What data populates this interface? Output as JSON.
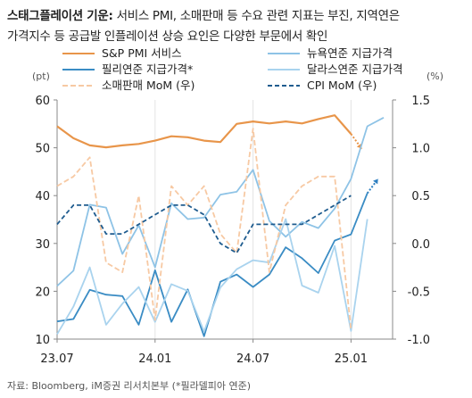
{
  "title": {
    "bold": "스태그플레이션 기운:",
    "line1_rest": " 서비스 PMI, 소매판매 등 수요 관련 지표는 부진, 지역연은",
    "line2": "가격지수 등 공급발 인플레이션 상승 요인은 다양한 부문에서 확인"
  },
  "source_note": "자료: Bloomberg, iM증권 리서치본부 (*필라델피아 연준)",
  "colors": {
    "sp_pmi": "#E8954A",
    "ny_fed": "#8EC3E6",
    "philly_fed": "#3A8CC4",
    "dallas_fed": "#A9D3EE",
    "retail_mom": "#F7C9A3",
    "cpi_mom": "#1F5C8F",
    "arrow_orange": "#E8954A",
    "arrow_blue": "#2E7FC0"
  },
  "chart_data": {
    "type": "line",
    "x": [
      "23.07",
      "23.08",
      "23.09",
      "23.10",
      "23.11",
      "23.12",
      "24.01",
      "24.02",
      "24.03",
      "24.04",
      "24.05",
      "24.06",
      "24.07",
      "24.08",
      "24.09",
      "24.10",
      "24.11",
      "24.12",
      "25.01",
      "25.02",
      "25.03"
    ],
    "x_tick_labels": [
      "23.07",
      "24.01",
      "24.07",
      "25.01"
    ],
    "left_axis": {
      "unit": "(pt)",
      "ylim": [
        10,
        60
      ],
      "ticks": [
        10,
        20,
        30,
        40,
        50,
        60
      ]
    },
    "right_axis": {
      "unit": "(%)",
      "ylim": [
        -1.0,
        1.5
      ],
      "ticks": [
        "-1.0",
        "-0.5",
        "0.0",
        "0.5",
        "1.0",
        "1.5"
      ]
    },
    "series": [
      {
        "name": "S&P PMI 서비스",
        "axis": "left",
        "style": "solid",
        "key": "sp_pmi",
        "values": [
          54.5,
          52.0,
          50.5,
          50.1,
          50.5,
          50.8,
          51.5,
          52.4,
          52.2,
          51.5,
          51.2,
          55.0,
          55.5,
          55.1,
          55.5,
          55.1,
          56.0,
          56.8,
          52.9,
          null,
          null
        ],
        "end_arrow": {
          "from": [
            52.9
          ],
          "to": 49.8
        }
      },
      {
        "name": "뉴욕연준 지급가격",
        "axis": "left",
        "style": "solid",
        "key": "ny_fed",
        "values": [
          21.1,
          24.3,
          38.1,
          37.5,
          27.8,
          33.8,
          25.0,
          38.4,
          35.1,
          35.4,
          40.2,
          40.8,
          45.4,
          34.7,
          31.4,
          34.5,
          33.2,
          37.3,
          43.5,
          54.5,
          56.3
        ]
      },
      {
        "name": "필리연준 지급가격*",
        "axis": "left",
        "style": "solid",
        "key": "philly_fed",
        "values": [
          13.7,
          14.2,
          20.3,
          19.3,
          19.0,
          13.0,
          24.4,
          13.6,
          20.4,
          10.6,
          22.0,
          23.5,
          20.9,
          23.5,
          29.2,
          26.9,
          23.8,
          30.6,
          31.9,
          40.5,
          null
        ],
        "end_arrow": {
          "to": 43.5
        }
      },
      {
        "name": "달라스연준 지급가격",
        "axis": "left",
        "style": "solid",
        "key": "dallas_fed",
        "values": [
          11.0,
          16.8,
          25.0,
          13.0,
          17.4,
          20.9,
          13.6,
          21.5,
          20.1,
          11.6,
          20.8,
          24.6,
          26.5,
          26.0,
          35.1,
          21.2,
          19.7,
          29.5,
          11.7,
          35.1,
          null
        ]
      },
      {
        "name": "소매판매 MoM (우)",
        "axis": "right",
        "style": "dashed",
        "key": "retail_mom",
        "values": [
          0.6,
          0.7,
          0.9,
          -0.2,
          -0.3,
          0.5,
          -0.8,
          0.6,
          0.4,
          0.6,
          0.1,
          -0.1,
          1.2,
          -0.3,
          0.4,
          0.6,
          0.7,
          0.7,
          -0.9,
          null,
          null
        ]
      },
      {
        "name": "CPI MoM (우)",
        "axis": "right",
        "style": "dashed",
        "key": "cpi_mom",
        "values": [
          0.2,
          0.4,
          0.4,
          0.1,
          0.1,
          0.2,
          0.3,
          0.4,
          0.4,
          0.3,
          0.0,
          -0.1,
          0.2,
          0.2,
          0.2,
          0.2,
          0.3,
          0.4,
          0.5,
          null,
          null
        ]
      }
    ]
  }
}
